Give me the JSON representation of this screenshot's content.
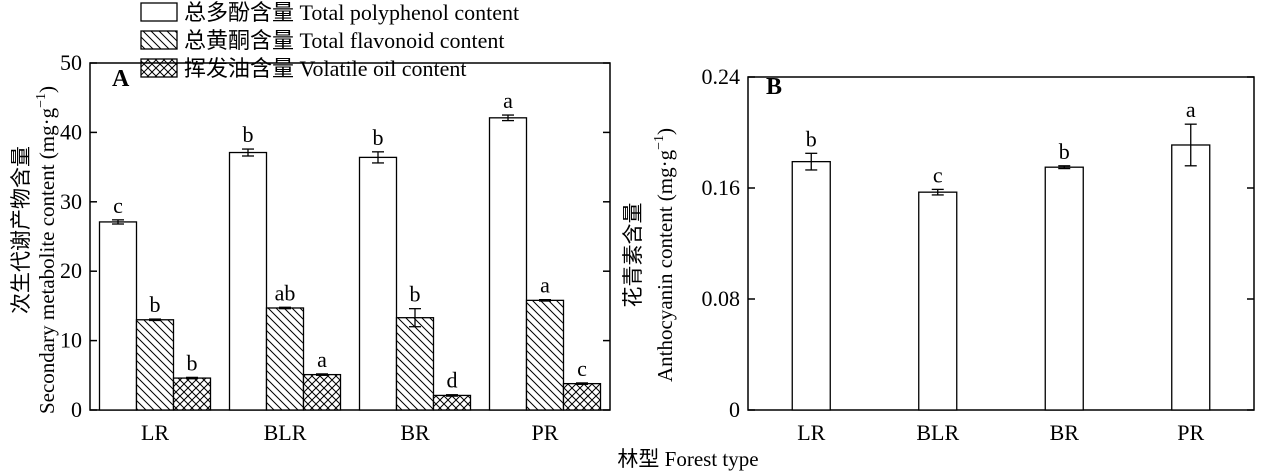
{
  "figure": {
    "shared_xlabel": "林型 Forest type"
  },
  "chart_data": [
    {
      "panel": "A",
      "type": "bar",
      "categories": [
        "LR",
        "BLR",
        "BR",
        "PR"
      ],
      "ylabel_cn": "次生代谢产物含量",
      "ylabel_en": "Secondary metabolite content (mg·g",
      "ylabel_exp": "−1",
      "ylabel_close": ")",
      "ylim": [
        0,
        50
      ],
      "yticks": [
        0,
        10,
        20,
        30,
        40,
        50
      ],
      "grid": false,
      "legend_position": "top-left",
      "series": [
        {
          "name": "总多酚含量 Total polyphenol content",
          "pattern": "open",
          "values": [
            27.1,
            37.1,
            36.4,
            42.1
          ],
          "errors": [
            0.3,
            0.5,
            0.8,
            0.4
          ],
          "letters": [
            "c",
            "b",
            "b",
            "a"
          ]
        },
        {
          "name": "总黄酮含量 Total flavonoid content",
          "pattern": "diagonal",
          "values": [
            13.0,
            14.7,
            13.3,
            15.8
          ],
          "errors": [
            0.1,
            0.1,
            1.3,
            0.1
          ],
          "letters": [
            "b",
            "ab",
            "b",
            "a"
          ]
        },
        {
          "name": "挥发油含量 Volatile oil content",
          "pattern": "crosshatch",
          "values": [
            4.6,
            5.1,
            2.1,
            3.8
          ],
          "errors": [
            0.1,
            0.1,
            0.1,
            0.1
          ],
          "letters": [
            "b",
            "a",
            "d",
            "c"
          ]
        }
      ]
    },
    {
      "panel": "B",
      "type": "bar",
      "categories": [
        "LR",
        "BLR",
        "BR",
        "PR"
      ],
      "ylabel_cn": "花青素含量",
      "ylabel_en": "Anthocyanin content (mg·g",
      "ylabel_exp": "−1",
      "ylabel_close": ")",
      "ylim": [
        0,
        0.24
      ],
      "yticks": [
        "0",
        "0.08",
        "0.16",
        "0.24"
      ],
      "grid": false,
      "series": [
        {
          "pattern": "open",
          "values": [
            0.179,
            0.157,
            0.175,
            0.191
          ],
          "errors": [
            0.006,
            0.002,
            0.001,
            0.015
          ],
          "letters": [
            "b",
            "c",
            "b",
            "a"
          ]
        }
      ]
    }
  ]
}
